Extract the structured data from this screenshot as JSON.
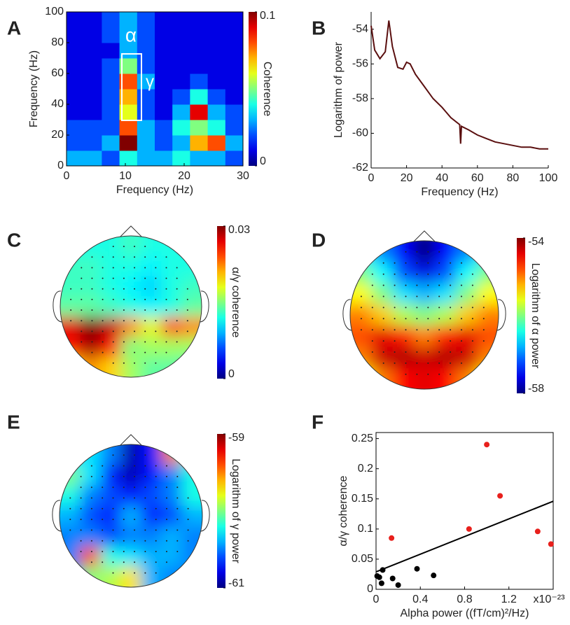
{
  "chart_data": [
    {
      "type": "heatmap",
      "label": "A",
      "xlabel": "Frequency (Hz)",
      "ylabel": "Frequency (Hz)",
      "xlim": [
        0,
        30
      ],
      "ylim": [
        0,
        100
      ],
      "xticks": [
        0,
        10,
        20,
        30
      ],
      "yticks": [
        0,
        20,
        40,
        60,
        80,
        100
      ],
      "xbins": [
        0,
        3,
        6,
        9,
        12,
        15,
        18,
        21,
        24,
        27,
        30
      ],
      "ybins": [
        0,
        10,
        20,
        30,
        40,
        50,
        60,
        70,
        80,
        90,
        100
      ],
      "z": [
        [
          0.03,
          0.03,
          0.02,
          0.04,
          0.03,
          0.03,
          0.04,
          0.03,
          0.03,
          0.02
        ],
        [
          0.02,
          0.02,
          0.03,
          0.1,
          0.03,
          0.02,
          0.03,
          0.07,
          0.08,
          0.03
        ],
        [
          0.02,
          0.02,
          0.02,
          0.08,
          0.03,
          0.02,
          0.04,
          0.05,
          0.04,
          0.02
        ],
        [
          0.01,
          0.01,
          0.02,
          0.06,
          0.02,
          0.01,
          0.03,
          0.09,
          0.03,
          0.02
        ],
        [
          0.01,
          0.01,
          0.02,
          0.07,
          0.02,
          0.01,
          0.02,
          0.04,
          0.02,
          0.01
        ],
        [
          0.01,
          0.01,
          0.02,
          0.08,
          0.03,
          0.01,
          0.01,
          0.02,
          0.01,
          0.01
        ],
        [
          0.01,
          0.01,
          0.02,
          0.05,
          0.02,
          0.01,
          0.01,
          0.01,
          0.01,
          0.01
        ],
        [
          0.01,
          0.01,
          0.01,
          0.03,
          0.02,
          0.01,
          0.01,
          0.01,
          0.01,
          0.01
        ],
        [
          0.01,
          0.01,
          0.02,
          0.03,
          0.02,
          0.01,
          0.01,
          0.01,
          0.01,
          0.01
        ],
        [
          0.01,
          0.01,
          0.02,
          0.03,
          0.02,
          0.01,
          0.01,
          0.01,
          0.01,
          0.01
        ]
      ],
      "clim": [
        0,
        0.1
      ],
      "cticks": [
        0,
        0.1
      ],
      "colorbar_label": "Coherence",
      "annotations": [
        "α",
        "γ"
      ]
    },
    {
      "type": "line",
      "label": "B",
      "xlabel": "Frequency (Hz)",
      "ylabel": "Logarithm of power",
      "xlim": [
        0,
        100
      ],
      "ylim": [
        -62,
        -53
      ],
      "xticks": [
        0,
        20,
        40,
        60,
        80,
        100
      ],
      "yticks": [
        -62,
        -60,
        -58,
        -56,
        -54
      ],
      "color": "#5a0f0f",
      "x": [
        0,
        2,
        5,
        8,
        10,
        12,
        15,
        18,
        20,
        22,
        25,
        30,
        35,
        40,
        45,
        50,
        50.5,
        51,
        55,
        60,
        65,
        70,
        75,
        80,
        85,
        90,
        95,
        100
      ],
      "y": [
        -53.8,
        -55.2,
        -55.7,
        -55.3,
        -53.5,
        -55.0,
        -56.2,
        -56.3,
        -55.9,
        -56.0,
        -56.6,
        -57.3,
        -58.0,
        -58.5,
        -59.1,
        -59.5,
        -60.6,
        -59.6,
        -59.8,
        -60.1,
        -60.3,
        -60.5,
        -60.6,
        -60.7,
        -60.8,
        -60.8,
        -60.9,
        -60.9
      ]
    },
    {
      "type": "topomap",
      "label": "C",
      "clim": [
        0,
        0.03
      ],
      "cticks": [
        0,
        0.03
      ],
      "colorbar_label": "α/γ coherence",
      "grid": [
        [
          0.012,
          0.012,
          0.012,
          0.013,
          0.012,
          0.012,
          0.012
        ],
        [
          0.013,
          0.013,
          0.012,
          0.012,
          0.011,
          0.012,
          0.012
        ],
        [
          0.013,
          0.013,
          0.012,
          0.011,
          0.01,
          0.012,
          0.013
        ],
        [
          0.014,
          0.014,
          0.013,
          0.012,
          0.011,
          0.012,
          0.014
        ],
        [
          0.027,
          0.03,
          0.028,
          0.022,
          0.018,
          0.024,
          0.022
        ],
        [
          0.026,
          0.029,
          0.026,
          0.015,
          0.016,
          0.016,
          0.016
        ],
        [
          0.02,
          0.022,
          0.02,
          0.016,
          0.014,
          0.014,
          0.013
        ]
      ]
    },
    {
      "type": "topomap",
      "label": "D",
      "clim": [
        -58,
        -54
      ],
      "cticks": [
        -58,
        -54
      ],
      "colorbar_label": "Logarithm of α power",
      "grid": [
        [
          -56.5,
          -57,
          -57.5,
          -58,
          -57.5,
          -57,
          -56.5
        ],
        [
          -56,
          -56.5,
          -57.2,
          -57.6,
          -57.2,
          -56.5,
          -56
        ],
        [
          -55.5,
          -56,
          -56.6,
          -56.8,
          -56.6,
          -56,
          -55.5
        ],
        [
          -55,
          -55.3,
          -55.8,
          -56,
          -55.8,
          -55.3,
          -55
        ],
        [
          -54.8,
          -54.4,
          -54.6,
          -55,
          -54.6,
          -54.4,
          -54.8
        ],
        [
          -55,
          -54.3,
          -54.2,
          -54.3,
          -54.2,
          -54.3,
          -55
        ],
        [
          -55.5,
          -55,
          -54.5,
          -54.4,
          -54.5,
          -55,
          -55.5
        ]
      ]
    },
    {
      "type": "topomap",
      "label": "E",
      "clim": [
        -61,
        -59
      ],
      "cticks": [
        -61,
        -59
      ],
      "colorbar_label": "Logarithm of γ power",
      "grid": [
        [
          -60.3,
          -60.3,
          -60.5,
          -60.9,
          -60.7,
          -59.5,
          -60.3
        ],
        [
          -60.0,
          -60.3,
          -60.7,
          -60.9,
          -60.7,
          -60.5,
          -60.2
        ],
        [
          -60.2,
          -60.5,
          -60.6,
          -60.7,
          -60.6,
          -60.5,
          -60.2
        ],
        [
          -60.4,
          -60.6,
          -60.7,
          -60.4,
          -60.7,
          -60.6,
          -60.4
        ],
        [
          -60.5,
          -60.5,
          -60.6,
          -60.5,
          -60.5,
          -60.4,
          -60.5
        ],
        [
          -60.5,
          -59.4,
          -60.2,
          -60.3,
          -60.4,
          -60.4,
          -60.5
        ],
        [
          -60.5,
          -60,
          -59.9,
          -59.7,
          -60.4,
          -60.5,
          -60.5
        ]
      ]
    },
    {
      "type": "scatter",
      "label": "F",
      "xlabel": "Alpha power ((fT/cm)²/Hz)",
      "ylabel": "α/γ coherence",
      "x_multiplier": "x10⁻²³",
      "xlim": [
        0,
        1.6
      ],
      "ylim": [
        0,
        0.26
      ],
      "xticks": [
        0,
        0.4,
        0.8,
        1.2
      ],
      "yticks": [
        0,
        0.05,
        0.1,
        0.15,
        0.2,
        0.25
      ],
      "series": [
        {
          "color": "#000000",
          "x": [
            0.01,
            0.03,
            0.05,
            0.06,
            0.15,
            0.2,
            0.37,
            0.52
          ],
          "y": [
            0.022,
            0.02,
            0.01,
            0.032,
            0.018,
            0.007,
            0.034,
            0.023
          ]
        },
        {
          "color": "#e8201c",
          "x": [
            0.14,
            0.84,
            1.0,
            1.12,
            1.46,
            1.58
          ],
          "y": [
            0.085,
            0.1,
            0.24,
            0.155,
            0.096,
            0.075
          ]
        }
      ],
      "fit": {
        "color": "#000000",
        "x": [
          0,
          1.6
        ],
        "y": [
          0.029,
          0.146
        ]
      }
    }
  ]
}
